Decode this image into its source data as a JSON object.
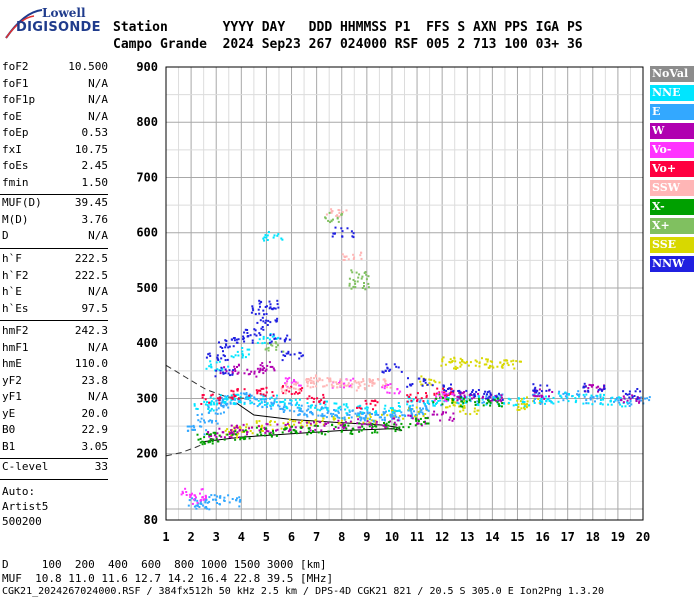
{
  "logo": {
    "line1": "Lowell",
    "line2": "DIGISONDE"
  },
  "header": {
    "row1": "Station       YYYY DAY   DDD HHMMSS P1  FFS S AXN PPS IGA PS",
    "row2": "Campo Grande  2024 Sep23 267 024000 RSF 005 2 713 100 03+ 36"
  },
  "params_block1": [
    {
      "name": "foF2",
      "value": "10.500"
    },
    {
      "name": "foF1",
      "value": "N/A"
    },
    {
      "name": "foF1p",
      "value": "N/A"
    },
    {
      "name": "foE",
      "value": "N/A"
    },
    {
      "name": "foEp",
      "value": "0.53"
    },
    {
      "name": "fxI",
      "value": "10.75"
    },
    {
      "name": "foEs",
      "value": "2.45"
    },
    {
      "name": "fmin",
      "value": "1.50"
    }
  ],
  "params_block2": [
    {
      "name": "MUF(D)",
      "value": "39.45"
    },
    {
      "name": "M(D)",
      "value": "3.76"
    },
    {
      "name": "D",
      "value": "N/A"
    }
  ],
  "params_block3": [
    {
      "name": "h`F",
      "value": "222.5"
    },
    {
      "name": "h`F2",
      "value": "222.5"
    },
    {
      "name": "h`E",
      "value": "N/A"
    },
    {
      "name": "h`Es",
      "value": "97.5"
    }
  ],
  "params_block4": [
    {
      "name": "hmF2",
      "value": "242.3"
    },
    {
      "name": "hmF1",
      "value": "N/A"
    },
    {
      "name": "hmE",
      "value": "110.0"
    },
    {
      "name": "yF2",
      "value": "23.8"
    },
    {
      "name": "yF1",
      "value": "N/A"
    },
    {
      "name": "yE",
      "value": "20.0"
    },
    {
      "name": "B0",
      "value": "22.9"
    },
    {
      "name": "B1",
      "value": "3.05"
    }
  ],
  "params_block5": [
    {
      "name": "C-level",
      "value": "33"
    }
  ],
  "auto": {
    "line1": "Auto:",
    "line2": "Artist5",
    "line3": "500200"
  },
  "legend": [
    {
      "label": "NoVal",
      "bg": "#8c8c8c",
      "fg": "#ffffff"
    },
    {
      "label": "NNE",
      "bg": "#00e5ff",
      "fg": "#ffffff"
    },
    {
      "label": "E",
      "bg": "#33a8ff",
      "fg": "#ffffff"
    },
    {
      "label": "W",
      "bg": "#b000b0",
      "fg": "#ffffff"
    },
    {
      "label": "Vo-",
      "bg": "#ff33ff",
      "fg": "#ffffff"
    },
    {
      "label": "Vo+",
      "bg": "#ff0040",
      "fg": "#ffffff"
    },
    {
      "label": "SSW",
      "bg": "#ffb6b6",
      "fg": "#ffffff"
    },
    {
      "label": "X-",
      "bg": "#00a000",
      "fg": "#ffffff"
    },
    {
      "label": "X+",
      "bg": "#80c060",
      "fg": "#ffffff"
    },
    {
      "label": "SSE",
      "bg": "#d8d800",
      "fg": "#ffffff"
    },
    {
      "label": "NNW",
      "bg": "#2020e0",
      "fg": "#ffffff"
    }
  ],
  "footer": {
    "d_row": "D     100  200  400  600  800 1000 1500 3000 [km]",
    "muf_row": "MUF  10.8 11.0 11.6 12.7 14.2 16.4 22.8 39.5 [MHz]",
    "file_row": "CGK21_2024267024000.RSF / 384fx512h 50 kHz 2.5 km / DPS-4D CGK21 821 / 20.5 S 305.0 E Ion2Png 1.3.20"
  },
  "chart_data": {
    "type": "scatter",
    "xlim": [
      1,
      20
    ],
    "ylim": [
      80,
      900
    ],
    "x_ticks": [
      1,
      2,
      3,
      4,
      5,
      6,
      7,
      8,
      9,
      10,
      11,
      12,
      13,
      14,
      15,
      16,
      17,
      18,
      19,
      20
    ],
    "y_ticks": [
      80,
      200,
      300,
      400,
      500,
      600,
      700,
      800,
      900
    ],
    "grid": true,
    "legend_position": "right",
    "series": [
      {
        "name": "SSE",
        "color": "#d8d800",
        "points": [
          [
            12.3,
            368
          ],
          [
            12.8,
            364
          ],
          [
            13.5,
            366
          ],
          [
            14.2,
            366
          ],
          [
            14.8,
            362
          ],
          [
            11.5,
            334
          ],
          [
            15,
            290
          ],
          [
            15.5,
            295
          ],
          [
            12.5,
            290
          ],
          [
            13,
            282
          ],
          [
            11,
            278
          ],
          [
            10,
            272
          ],
          [
            9,
            266
          ],
          [
            8,
            262
          ],
          [
            7,
            258
          ],
          [
            6,
            256
          ],
          [
            5,
            252
          ],
          [
            4,
            246
          ],
          [
            3.5,
            240
          ]
        ]
      },
      {
        "name": "E",
        "color": "#33a8ff",
        "points": [
          [
            2.2,
            245
          ],
          [
            2.6,
            265
          ],
          [
            3,
            282
          ],
          [
            3.3,
            292
          ],
          [
            3.6,
            300
          ],
          [
            4,
            305
          ],
          [
            4.5,
            300
          ],
          [
            5,
            295
          ],
          [
            5.5,
            290
          ],
          [
            6,
            285
          ],
          [
            6.5,
            280
          ],
          [
            7,
            277
          ],
          [
            7.5,
            275
          ],
          [
            8,
            273
          ],
          [
            8.5,
            270
          ],
          [
            9,
            268
          ],
          [
            9.5,
            268
          ],
          [
            10,
            270
          ],
          [
            10.5,
            274
          ],
          [
            11,
            282
          ],
          [
            11.5,
            290
          ],
          [
            13,
            300
          ],
          [
            14,
            300
          ],
          [
            16,
            300
          ],
          [
            17,
            306
          ],
          [
            18,
            302
          ],
          [
            19,
            296
          ],
          [
            19.8,
            298
          ],
          [
            2.5,
            110
          ],
          [
            3,
            118
          ],
          [
            3.5,
            115
          ],
          [
            2.2,
            112
          ]
        ]
      },
      {
        "name": "NNE",
        "color": "#00e5ff",
        "points": [
          [
            2.5,
            288
          ],
          [
            3,
            296
          ],
          [
            3.5,
            300
          ],
          [
            4,
            300
          ],
          [
            5,
            298
          ],
          [
            6,
            292
          ],
          [
            7,
            288
          ],
          [
            8,
            284
          ],
          [
            9,
            280
          ],
          [
            10,
            285
          ],
          [
            11,
            296
          ],
          [
            12,
            296
          ],
          [
            13,
            296
          ],
          [
            14,
            296
          ],
          [
            15,
            296
          ],
          [
            16,
            298
          ],
          [
            17,
            304
          ],
          [
            18,
            300
          ],
          [
            19,
            296
          ],
          [
            3,
            360
          ],
          [
            4,
            385
          ],
          [
            5,
            410
          ],
          [
            5.2,
            595
          ]
        ]
      },
      {
        "name": "W",
        "color": "#b000b0",
        "points": [
          [
            3,
            235
          ],
          [
            3.5,
            240
          ],
          [
            4,
            245
          ],
          [
            5,
            248
          ],
          [
            6,
            250
          ],
          [
            7,
            252
          ],
          [
            8,
            254
          ],
          [
            9,
            256
          ],
          [
            10,
            258
          ],
          [
            11,
            262
          ],
          [
            12,
            270
          ],
          [
            12.5,
            310
          ],
          [
            13,
            305
          ],
          [
            14,
            304
          ],
          [
            16,
            310
          ],
          [
            18,
            318
          ],
          [
            19.5,
            300
          ],
          [
            5,
            360
          ],
          [
            4.5,
            350
          ],
          [
            3.5,
            355
          ]
        ]
      },
      {
        "name": "NNW",
        "color": "#2020e0",
        "points": [
          [
            3,
            380
          ],
          [
            3.5,
            400
          ],
          [
            4,
            410
          ],
          [
            4.5,
            420
          ],
          [
            5,
            440
          ],
          [
            5.5,
            410
          ],
          [
            6,
            380
          ],
          [
            5,
            470
          ],
          [
            4.8,
            460
          ],
          [
            3.2,
            350
          ],
          [
            10,
            356
          ],
          [
            11,
            330
          ],
          [
            12,
            320
          ],
          [
            13,
            310
          ],
          [
            14,
            308
          ],
          [
            16,
            320
          ],
          [
            18,
            320
          ],
          [
            19.5,
            310
          ],
          [
            8,
            602
          ]
        ]
      },
      {
        "name": "X-",
        "color": "#00a000",
        "points": [
          [
            2.5,
            228
          ],
          [
            3,
            232
          ],
          [
            4,
            236
          ],
          [
            5,
            240
          ],
          [
            6,
            242
          ],
          [
            7,
            244
          ],
          [
            8,
            246
          ],
          [
            9,
            248
          ],
          [
            10,
            250
          ],
          [
            11,
            258
          ],
          [
            12,
            300
          ],
          [
            13,
            296
          ],
          [
            14,
            296
          ]
        ]
      },
      {
        "name": "X+",
        "color": "#80c060",
        "points": [
          [
            8.6,
            525
          ],
          [
            8.7,
            505
          ],
          [
            7.6,
            630
          ],
          [
            5.3,
            395
          ]
        ]
      },
      {
        "name": "Vo+",
        "color": "#ff0040",
        "points": [
          [
            2.8,
            300
          ],
          [
            4,
            310
          ],
          [
            5,
            315
          ],
          [
            6,
            318
          ],
          [
            7,
            300
          ],
          [
            9,
            290
          ],
          [
            11,
            305
          ],
          [
            12,
            312
          ]
        ]
      },
      {
        "name": "Vo-",
        "color": "#ff33ff",
        "points": [
          [
            2,
            130
          ],
          [
            2.3,
            120
          ],
          [
            6,
            330
          ],
          [
            8,
            330
          ],
          [
            10,
            320
          ],
          [
            12,
            305
          ]
        ]
      },
      {
        "name": "SSW",
        "color": "#ffb6b6",
        "points": [
          [
            6,
            320
          ],
          [
            6.5,
            330
          ],
          [
            7,
            335
          ],
          [
            7.5,
            330
          ],
          [
            8,
            328
          ],
          [
            8.5,
            325
          ],
          [
            9,
            330
          ],
          [
            9.5,
            328
          ],
          [
            7.8,
            640
          ],
          [
            8.4,
            560
          ]
        ]
      },
      {
        "name": "NoVal",
        "color": "#8c8c8c",
        "points": []
      }
    ]
  }
}
